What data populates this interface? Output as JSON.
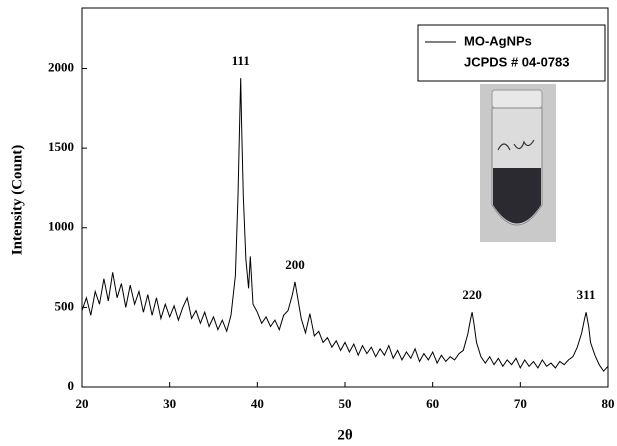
{
  "chart_data": {
    "type": "line",
    "x_label": "2θ",
    "y_label": "Intensity (Count)",
    "xlim": [
      20,
      80
    ],
    "xticks": [
      20,
      30,
      40,
      50,
      60,
      70,
      80
    ],
    "ylim": [
      0,
      2380
    ],
    "yticks": [
      0,
      500,
      1000,
      1500,
      2000
    ],
    "legend_note": "JCPDS # 04-0783",
    "annotations": [
      {
        "text": "111",
        "x": 38.1
      },
      {
        "text": "200",
        "x": 44.3
      },
      {
        "text": "220",
        "x": 64.5
      },
      {
        "text": "311",
        "x": 77.5
      }
    ],
    "x": [
      20,
      20.5,
      21,
      21.5,
      22,
      22.5,
      23,
      23.5,
      24,
      24.5,
      25,
      25.5,
      26,
      26.5,
      27,
      27.5,
      28,
      28.5,
      29,
      29.5,
      30,
      30.5,
      31,
      31.5,
      32,
      32.5,
      33,
      33.5,
      34,
      34.5,
      35,
      35.5,
      36,
      36.5,
      37,
      37.5,
      37.8,
      38.0,
      38.1,
      38.2,
      38.4,
      38.7,
      39,
      39.2,
      39.5,
      40,
      40.5,
      41,
      41.5,
      42,
      42.5,
      43,
      43.5,
      44,
      44.3,
      44.6,
      45,
      45.5,
      46,
      46.5,
      47,
      47.5,
      48,
      48.5,
      49,
      49.5,
      50,
      50.5,
      51,
      51.5,
      52,
      52.5,
      53,
      53.5,
      54,
      54.5,
      55,
      55.5,
      56,
      56.5,
      57,
      57.5,
      58,
      58.5,
      59,
      59.5,
      60,
      60.5,
      61,
      61.5,
      62,
      62.5,
      63,
      63.5,
      64,
      64.3,
      64.5,
      64.7,
      65,
      65.5,
      66,
      66.5,
      67,
      67.5,
      68,
      68.5,
      69,
      69.5,
      70,
      70.5,
      71,
      71.5,
      72,
      72.5,
      73,
      73.5,
      74,
      74.5,
      75,
      75.5,
      76,
      76.5,
      77,
      77.3,
      77.5,
      77.8,
      78,
      78.5,
      79,
      79.5,
      80
    ],
    "series": [
      {
        "name": "MO-AgNPs",
        "color": "#000000",
        "values": [
          480,
          560,
          450,
          600,
          520,
          680,
          540,
          720,
          560,
          650,
          500,
          640,
          520,
          600,
          470,
          580,
          450,
          560,
          430,
          520,
          440,
          510,
          420,
          500,
          560,
          430,
          480,
          400,
          470,
          380,
          440,
          360,
          420,
          350,
          450,
          700,
          1200,
          1700,
          1940,
          1650,
          1200,
          800,
          620,
          820,
          520,
          470,
          400,
          440,
          380,
          420,
          360,
          450,
          480,
          580,
          660,
          560,
          430,
          340,
          460,
          320,
          350,
          280,
          310,
          250,
          290,
          230,
          280,
          220,
          270,
          200,
          260,
          210,
          250,
          190,
          240,
          200,
          260,
          180,
          230,
          170,
          220,
          180,
          240,
          160,
          210,
          170,
          220,
          150,
          200,
          160,
          190,
          170,
          210,
          230,
          330,
          420,
          470,
          400,
          280,
          190,
          150,
          190,
          140,
          180,
          130,
          170,
          140,
          180,
          120,
          170,
          130,
          160,
          120,
          170,
          130,
          150,
          120,
          160,
          140,
          170,
          190,
          250,
          340,
          420,
          470,
          380,
          280,
          200,
          140,
          100,
          130
        ]
      }
    ]
  }
}
